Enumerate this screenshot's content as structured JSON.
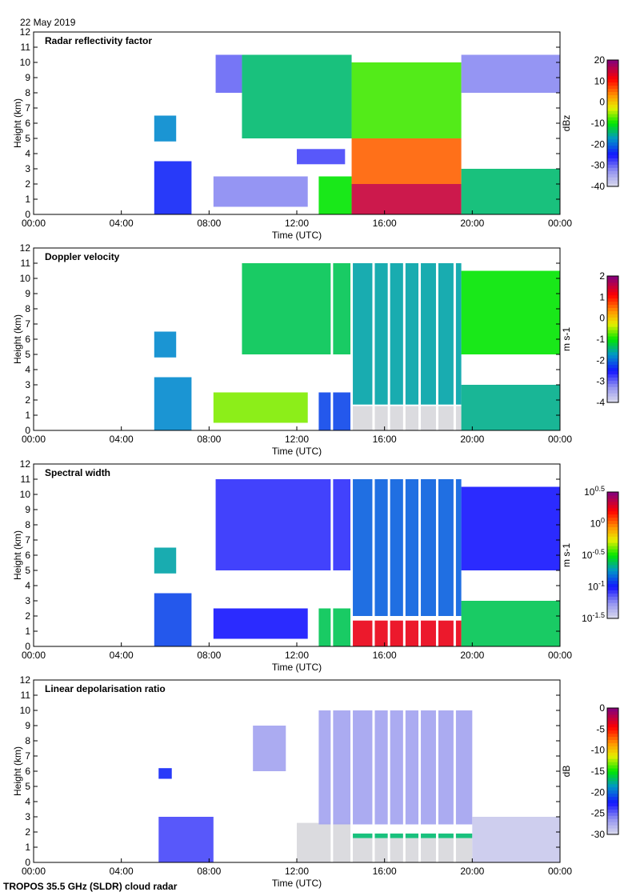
{
  "date": "22 May 2019",
  "footer": "TROPOS 35.5 GHz (SLDR) cloud radar",
  "chart_data": [
    {
      "type": "heatmap",
      "title": "Radar reflectivity factor",
      "xlabel": "Time (UTC)",
      "ylabel": "Height (km)",
      "xlim_hours": [
        0,
        24
      ],
      "ylim": [
        0,
        12
      ],
      "xticks": [
        "00:00",
        "04:00",
        "08:00",
        "12:00",
        "16:00",
        "20:00",
        "00:00"
      ],
      "yticks": [
        0,
        1,
        2,
        3,
        4,
        5,
        6,
        7,
        8,
        9,
        10,
        11,
        12
      ],
      "colorbar": {
        "unit": "dBz",
        "range": [
          -40,
          20
        ],
        "ticks": [
          "20",
          "10",
          "0",
          "-10",
          "-20",
          "-30",
          "-40"
        ]
      },
      "regions": [
        {
          "t": [
            5.5,
            7.2
          ],
          "h": [
            0,
            3.5
          ],
          "v": -24
        },
        {
          "t": [
            5.5,
            6.5
          ],
          "h": [
            4.8,
            6.5
          ],
          "v": -18
        },
        {
          "t": [
            8.2,
            12.5
          ],
          "h": [
            0.5,
            2.5
          ],
          "v": -32
        },
        {
          "t": [
            8.3,
            9.5
          ],
          "h": [
            8,
            10.5
          ],
          "v": -30
        },
        {
          "t": [
            9.5,
            14.5
          ],
          "h": [
            5,
            10.5
          ],
          "v": -14
        },
        {
          "t": [
            12,
            14.2
          ],
          "h": [
            3.3,
            4.3
          ],
          "v": -28
        },
        {
          "t": [
            13,
            14.5
          ],
          "h": [
            0,
            2.5
          ],
          "v": -10
        },
        {
          "t": [
            14.5,
            19.5
          ],
          "h": [
            5,
            10
          ],
          "v": -8
        },
        {
          "t": [
            14.5,
            19.5
          ],
          "h": [
            2,
            5
          ],
          "v": 6
        },
        {
          "t": [
            14.5,
            19.5
          ],
          "h": [
            0,
            2
          ],
          "v": 15
        },
        {
          "t": [
            19.5,
            24
          ],
          "h": [
            0,
            3
          ],
          "v": -14
        },
        {
          "t": [
            19.5,
            24
          ],
          "h": [
            8,
            10.5
          ],
          "v": -32
        }
      ]
    },
    {
      "type": "heatmap",
      "title": "Doppler velocity",
      "xlabel": "Time (UTC)",
      "ylabel": "Height (km)",
      "xlim_hours": [
        0,
        24
      ],
      "ylim": [
        0,
        12
      ],
      "xticks": [
        "00:00",
        "04:00",
        "08:00",
        "12:00",
        "16:00",
        "20:00",
        "00:00"
      ],
      "yticks": [
        0,
        1,
        2,
        3,
        4,
        5,
        6,
        7,
        8,
        9,
        10,
        11,
        12
      ],
      "colorbar": {
        "unit": "m s-1",
        "range": [
          -4,
          2
        ],
        "ticks": [
          "2",
          "1",
          "0",
          "-1",
          "-2",
          "-3",
          "-4"
        ]
      },
      "regions": [
        {
          "t": [
            5.5,
            7.2
          ],
          "h": [
            0,
            3.5
          ],
          "v": -1.8
        },
        {
          "t": [
            5.5,
            6.5
          ],
          "h": [
            4.8,
            6.5
          ],
          "v": -1.8
        },
        {
          "t": [
            8.2,
            12.5
          ],
          "h": [
            0.5,
            2.5
          ],
          "v": -0.6
        },
        {
          "t": [
            9.5,
            14.5
          ],
          "h": [
            5,
            11
          ],
          "v": -1.3
        },
        {
          "t": [
            13,
            14.5
          ],
          "h": [
            0,
            2.5
          ],
          "v": -2.2
        },
        {
          "t": [
            14.5,
            19.5
          ],
          "h": [
            1.7,
            11
          ],
          "v": -1.6
        },
        {
          "t": [
            14.5,
            19.5
          ],
          "h": [
            0,
            1.6
          ],
          "v": -4.2
        },
        {
          "t": [
            19.5,
            24
          ],
          "h": [
            0,
            3
          ],
          "v": -1.5
        },
        {
          "t": [
            19.5,
            24
          ],
          "h": [
            5,
            10.5
          ],
          "v": -1.0
        }
      ]
    },
    {
      "type": "heatmap",
      "title": "Spectral width",
      "xlabel": "Time (UTC)",
      "ylabel": "Height (km)",
      "xlim_hours": [
        0,
        24
      ],
      "ylim": [
        0,
        12
      ],
      "xticks": [
        "00:00",
        "04:00",
        "08:00",
        "12:00",
        "16:00",
        "20:00",
        "00:00"
      ],
      "yticks": [
        0,
        1,
        2,
        3,
        4,
        5,
        6,
        7,
        8,
        9,
        10,
        11,
        12
      ],
      "colorbar": {
        "unit": "m s-1",
        "scale": "log",
        "range": [
          -1.5,
          0.5
        ],
        "ticks": [
          "10^0.5",
          "10^0",
          "10^-0.5",
          "10^-1",
          "10^-1.5"
        ]
      },
      "regions": [
        {
          "t": [
            5.5,
            7.2
          ],
          "h": [
            0,
            3.5
          ],
          "v": -0.9
        },
        {
          "t": [
            5.5,
            6.5
          ],
          "h": [
            4.8,
            6.5
          ],
          "v": -0.7
        },
        {
          "t": [
            8.2,
            12.5
          ],
          "h": [
            0.5,
            2.5
          ],
          "v": -1.0
        },
        {
          "t": [
            8.3,
            14.5
          ],
          "h": [
            5,
            11
          ],
          "v": -1.05
        },
        {
          "t": [
            13,
            14.5
          ],
          "h": [
            0,
            2.5
          ],
          "v": -0.6
        },
        {
          "t": [
            14.5,
            19.5
          ],
          "h": [
            2,
            11
          ],
          "v": -0.85
        },
        {
          "t": [
            14.5,
            19.5
          ],
          "h": [
            0,
            1.7
          ],
          "v": 0.25
        },
        {
          "t": [
            19.5,
            24
          ],
          "h": [
            0,
            3
          ],
          "v": -0.6
        },
        {
          "t": [
            19.5,
            24
          ],
          "h": [
            5,
            10.5
          ],
          "v": -1.0
        }
      ]
    },
    {
      "type": "heatmap",
      "title": "Linear depolarisation ratio",
      "xlabel": "Time (UTC)",
      "ylabel": "Height (km)",
      "xlim_hours": [
        0,
        24
      ],
      "ylim": [
        0,
        12
      ],
      "xticks": [
        "00:00",
        "04:00",
        "08:00",
        "12:00",
        "16:00",
        "20:00",
        "00:00"
      ],
      "yticks": [
        0,
        1,
        2,
        3,
        4,
        5,
        6,
        7,
        8,
        9,
        10,
        11,
        12
      ],
      "colorbar": {
        "unit": "dB",
        "range": [
          -30,
          0
        ],
        "ticks": [
          "0",
          "-5",
          "-10",
          "-15",
          "-20",
          "-25",
          "-30"
        ]
      },
      "regions": [
        {
          "t": [
            5.7,
            8.2
          ],
          "h": [
            0,
            3
          ],
          "v": -24
        },
        {
          "t": [
            5.7,
            6.3
          ],
          "h": [
            5.5,
            6.2
          ],
          "v": -22
        },
        {
          "t": [
            10,
            11.5
          ],
          "h": [
            6,
            9
          ],
          "v": -27
        },
        {
          "t": [
            12,
            14.5
          ],
          "h": [
            0,
            2.6
          ],
          "v": -30.5
        },
        {
          "t": [
            13,
            20
          ],
          "h": [
            2.5,
            10
          ],
          "v": -27
        },
        {
          "t": [
            14.5,
            20
          ],
          "h": [
            0,
            1.6
          ],
          "v": -30.5
        },
        {
          "t": [
            14.5,
            20
          ],
          "h": [
            1.6,
            1.9
          ],
          "v": -17
        },
        {
          "t": [
            20,
            24
          ],
          "h": [
            0,
            3
          ],
          "v": -29
        }
      ]
    }
  ],
  "data_gaps_utc": [
    13.6,
    14.5,
    15.5,
    16.2,
    16.9,
    17.6,
    18.4,
    19.2
  ]
}
